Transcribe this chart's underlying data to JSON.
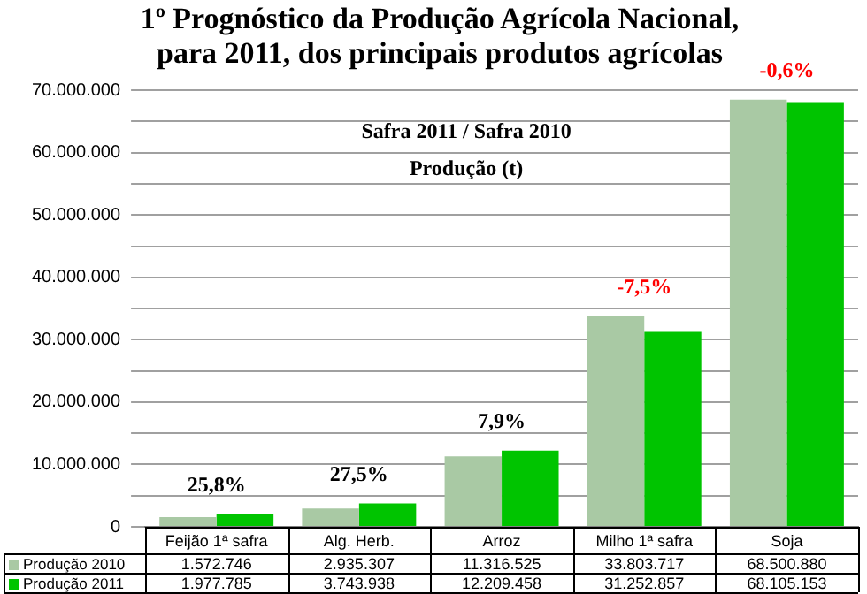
{
  "chart_data": {
    "type": "bar",
    "title": "1º Prognóstico da Produção Agrícola Nacional,\npara 2011, dos principais produtos agrícolas",
    "categories": [
      "Feijão 1ª safra",
      "Alg. Herb.",
      "Arroz",
      "Milho 1ª safra",
      "Soja"
    ],
    "series": [
      {
        "name": "Produção 2010",
        "color": "#a9c9a4",
        "values": [
          1572746,
          2935307,
          11316525,
          33803717,
          68500880
        ],
        "value_labels": [
          "1.572.746",
          "2.935.307",
          "11.316.525",
          "33.803.717",
          "68.500.880"
        ]
      },
      {
        "name": "Produção 2011",
        "color": "#00c400",
        "values": [
          1977785,
          3743938,
          12209458,
          31252857,
          68105153
        ],
        "value_labels": [
          "1.977.785",
          "3.743.938",
          "12.209.458",
          "31.252.857",
          "68.105.153"
        ]
      }
    ],
    "ylim": [
      0,
      70000000
    ],
    "yticks": [
      {
        "value": 0,
        "label": "0"
      },
      {
        "value": 5000000,
        "label": null
      },
      {
        "value": 10000000,
        "label": "10.000.000"
      },
      {
        "value": 15000000,
        "label": null
      },
      {
        "value": 20000000,
        "label": "20.000.000"
      },
      {
        "value": 25000000,
        "label": null
      },
      {
        "value": 30000000,
        "label": "30.000.000"
      },
      {
        "value": 35000000,
        "label": null
      },
      {
        "value": 40000000,
        "label": "40.000.000"
      },
      {
        "value": 45000000,
        "label": null
      },
      {
        "value": 50000000,
        "label": "50.000.000"
      },
      {
        "value": 55000000,
        "label": null
      },
      {
        "value": 60000000,
        "label": "60.000.000"
      },
      {
        "value": 65000000,
        "label": null
      },
      {
        "value": 70000000,
        "label": "70.000.000"
      }
    ],
    "grid": "y",
    "legend": "bottom",
    "annotations": [
      "Safra 2011 / Safra 2010",
      "Produção (t)",
      {
        "text": "25,8%",
        "x": "Feijão 1ª safra",
        "y": 1977785
      },
      {
        "text": "27,5%",
        "x": "Alg. Herb.",
        "y": 3743938
      },
      {
        "text": "7,9%",
        "x": "Arroz",
        "y": 12209458
      },
      {
        "text": "-7,5%",
        "x": "Milho 1ª safra",
        "y": 33803717
      },
      {
        "text": "-0,6%",
        "x": "Soja",
        "y": 68500880
      }
    ]
  }
}
